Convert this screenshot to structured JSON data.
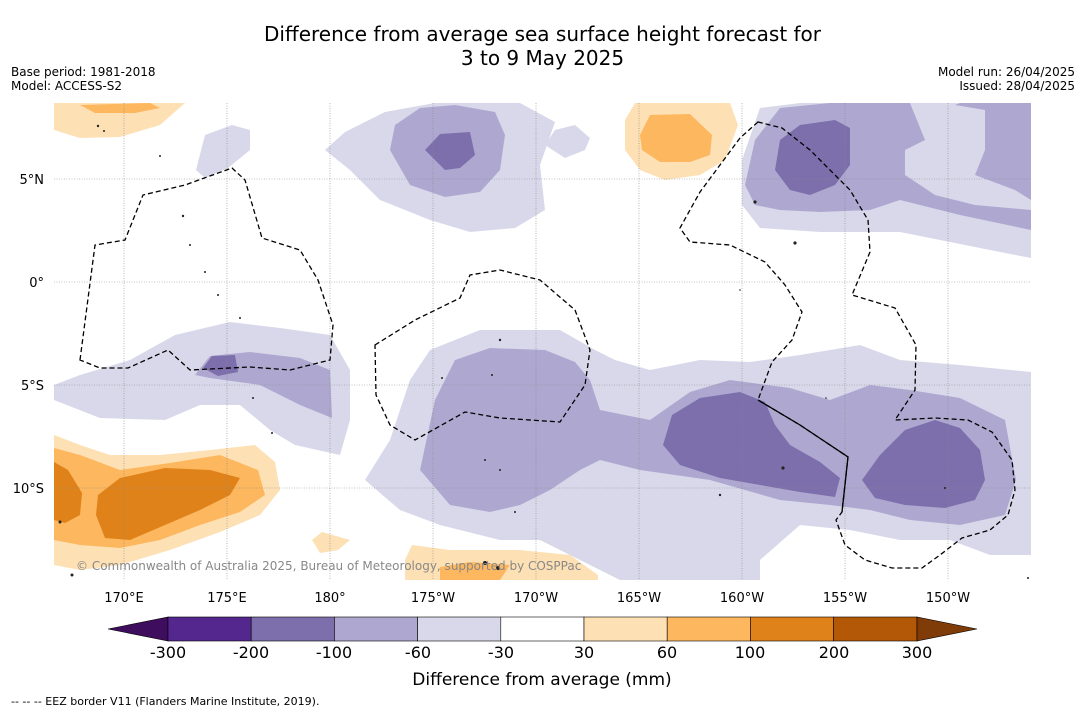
{
  "title_line1": "Difference from average sea surface height forecast for",
  "title_line2": "3 to 9 May 2025",
  "base_period": "Base period: 1981-2018",
  "model": "Model: ACCESS-S2",
  "model_run": "Model run: 26/04/2025",
  "issued": "Issued: 28/04/2025",
  "copyright": "© Commonwealth of Australia 2025, Bureau of Meteorology, supported by COSPPac",
  "footnote": "--  --  -- EEZ border V11 (Flanders Marine Institute, 2019).",
  "axes": {
    "lon_labels": [
      "170°E",
      "175°E",
      "180°",
      "175°W",
      "170°W",
      "165°W",
      "160°W",
      "155°W",
      "150°W"
    ],
    "lat_labels": [
      "5°N",
      "0°",
      "5°S",
      "10°S"
    ]
  },
  "colorbar": {
    "title": "Difference from average (mm)",
    "tick_labels": [
      "-300",
      "-200",
      "-100",
      "-60",
      "-30",
      "30",
      "60",
      "100",
      "200",
      "300"
    ],
    "colors": [
      "#3f0d5e",
      "#54278f",
      "#7d6fac",
      "#aea8d0",
      "#d8d8ea",
      "#ffffff",
      "#fee0b5",
      "#fdb75f",
      "#e0821a",
      "#b35806",
      "#7f3b08"
    ]
  }
}
